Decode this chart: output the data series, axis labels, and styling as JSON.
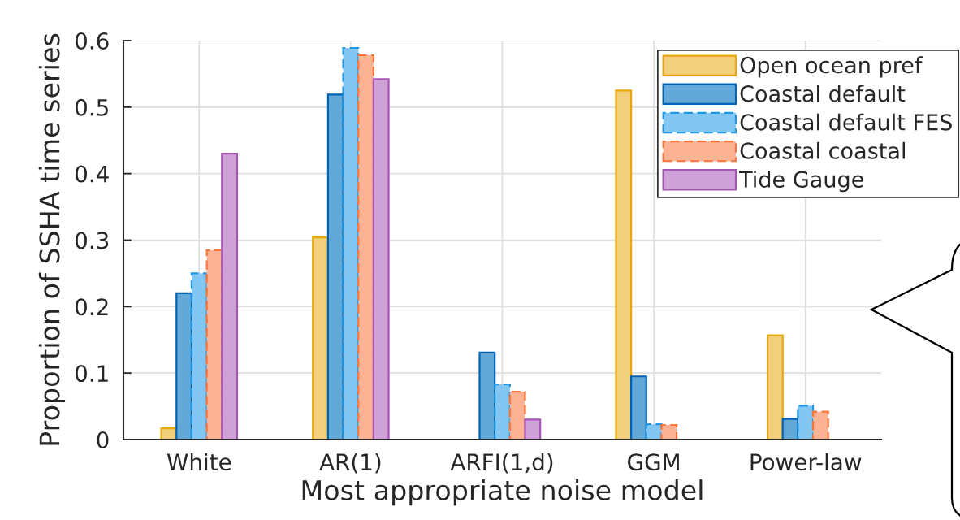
{
  "chart_data": {
    "type": "bar",
    "xlabel": "Most appropriate noise model",
    "ylabel": "Proportion of SSHA time series",
    "categories": [
      "White",
      "AR(1)",
      "ARFI(1,d)",
      "GGM",
      "Power-law"
    ],
    "series": [
      {
        "name": "Open ocean pref",
        "color": "#f2cf7a",
        "values": [
          0.017,
          0.304,
          0,
          0.525,
          0.157
        ]
      },
      {
        "name": "Coastal default",
        "color": "#63a9d7",
        "values": [
          0.22,
          0.519,
          0.131,
          0.095,
          0.031
        ]
      },
      {
        "name": "Coastal default FES",
        "color": "#84c6f2",
        "line_style": "dashed",
        "values": [
          0.25,
          0.589,
          0.083,
          0.023,
          0.051
        ]
      },
      {
        "name": "Coastal coastal",
        "color": "#fcb394",
        "line_style": "dashed",
        "values": [
          0.285,
          0.578,
          0.072,
          0.022,
          0.042
        ]
      },
      {
        "name": "Tide Gauge",
        "color": "#cfa2d7",
        "values": [
          0.43,
          0.542,
          0.03,
          0,
          0
        ]
      }
    ],
    "ylim": [
      0,
      0.6
    ],
    "yticks": [
      0,
      0.1,
      0.2,
      0.3,
      0.4,
      0.5,
      0.6
    ],
    "grid": true,
    "legend": "top right"
  }
}
